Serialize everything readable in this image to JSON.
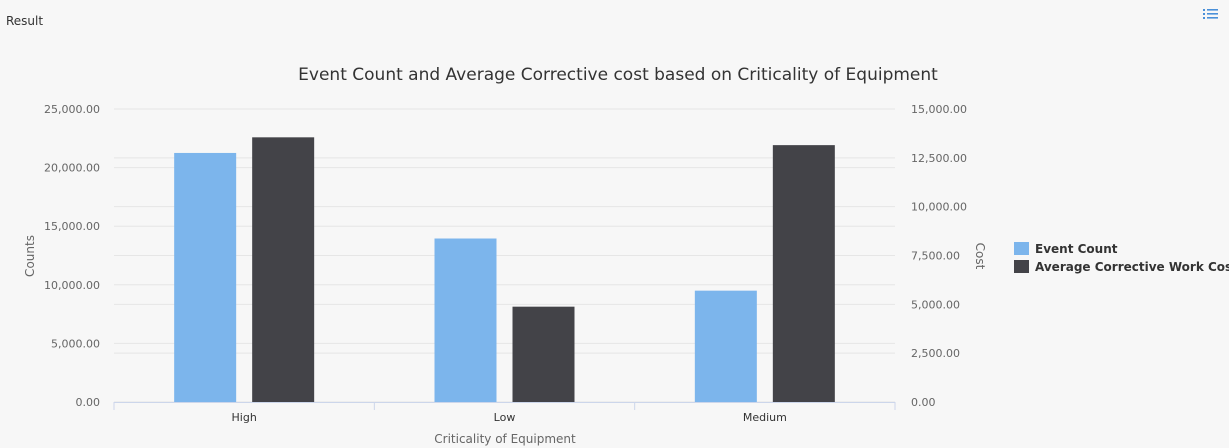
{
  "panel": {
    "title": "Result",
    "menu_icon": "list-menu-icon"
  },
  "colors": {
    "event_count": "#7cb5ec",
    "avg_cost": "#434348",
    "grid": "#e6e6e6",
    "axis_text": "#666666",
    "title_text": "#333333"
  },
  "chart_data": {
    "type": "bar",
    "title": "Event Count and Average Corrective cost based on Criticality of Equipment",
    "xlabel": "Criticality of Equipment",
    "ylabel": "Counts",
    "y2label": "Cost",
    "categories": [
      "High",
      "Low",
      "Medium"
    ],
    "ylim": [
      0,
      25000
    ],
    "y2lim": [
      0,
      15000
    ],
    "y_ticks": [
      "0.00",
      "5,000.00",
      "10,000.00",
      "15,000.00",
      "20,000.00",
      "25,000.00"
    ],
    "y2_ticks": [
      "0.00",
      "2,500.00",
      "5,000.00",
      "7,500.00",
      "10,000.00",
      "12,500.00",
      "15,000.00"
    ],
    "grid": true,
    "legend_position": "right",
    "series": [
      {
        "name": "Event Count",
        "axis": "left",
        "values": [
          21250,
          13950,
          9500
        ]
      },
      {
        "name": "Average Corrective Work Cost",
        "axis": "right",
        "values": [
          13550,
          4880,
          13150
        ]
      }
    ]
  }
}
